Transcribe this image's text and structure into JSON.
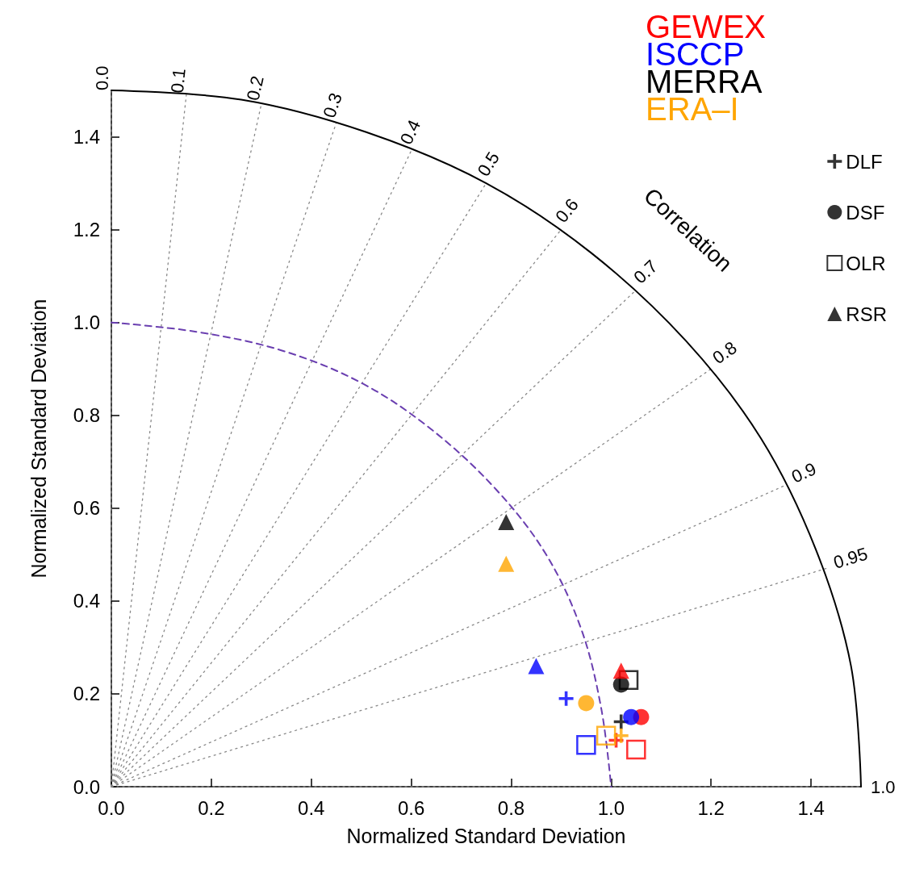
{
  "chart_data": {
    "type": "scatter",
    "xlabel": "Normalized Standard Deviation",
    "ylabel": "Normalized Standard Deviation",
    "annotations": [
      "Correlation"
    ],
    "xlim": [
      0,
      1.5
    ],
    "xticks": [
      {
        "value": 0,
        "label": "0.0"
      },
      0.2,
      0.4,
      0.6,
      0.8,
      {
        "value": 1,
        "label": "1.0"
      },
      1.2,
      1.4
    ],
    "ylim": [
      0,
      1.5
    ],
    "yticks": [
      {
        "value": 0,
        "label": "0.0"
      },
      0.2,
      0.4,
      0.6,
      0.8,
      {
        "value": 1,
        "label": "1.0"
      },
      1.2,
      1.4
    ],
    "grid": false,
    "legend": "top right",
    "series": [
      {
        "name": "0.0",
        "type": "line",
        "color": "#888888",
        "line_style": "dotted",
        "marker": "none",
        "x": [
          0,
          0
        ],
        "values": [
          0,
          1.5
        ]
      },
      {
        "name": "0.1",
        "type": "line",
        "color": "#888888",
        "line_style": "dotted",
        "marker": "none",
        "x": [
          0,
          0.15
        ],
        "values": [
          0,
          1.49
        ]
      },
      {
        "name": "0.2",
        "type": "line",
        "color": "#888888",
        "line_style": "dotted",
        "marker": "none",
        "x": [
          0,
          0.3
        ],
        "values": [
          0,
          1.47
        ]
      },
      {
        "name": "0.3",
        "type": "line",
        "color": "#888888",
        "line_style": "dotted",
        "marker": "none",
        "x": [
          0,
          0.45
        ],
        "values": [
          0,
          1.43
        ]
      },
      {
        "name": "0.4",
        "type": "line",
        "color": "#888888",
        "line_style": "dotted",
        "marker": "none",
        "x": [
          0,
          0.6
        ],
        "values": [
          0,
          1.37
        ]
      },
      {
        "name": "0.5",
        "type": "line",
        "color": "#888888",
        "line_style": "dotted",
        "marker": "none",
        "x": [
          0,
          0.75
        ],
        "values": [
          0,
          1.3
        ]
      },
      {
        "name": "0.6",
        "type": "line",
        "color": "#888888",
        "line_style": "dotted",
        "marker": "none",
        "x": [
          0,
          0.9
        ],
        "values": [
          0,
          1.2
        ]
      },
      {
        "name": "0.7",
        "type": "line",
        "color": "#888888",
        "line_style": "dotted",
        "marker": "none",
        "x": [
          0,
          1.05
        ],
        "values": [
          0,
          1.07
        ]
      },
      {
        "name": "0.8",
        "type": "line",
        "color": "#888888",
        "line_style": "dotted",
        "marker": "none",
        "x": [
          0,
          1.2
        ],
        "values": [
          0,
          0.9
        ]
      },
      {
        "name": "0.9",
        "type": "line",
        "color": "#888888",
        "line_style": "dotted",
        "marker": "none",
        "x": [
          0,
          1.35
        ],
        "values": [
          0,
          0.65
        ]
      },
      {
        "name": "0.95",
        "type": "line",
        "color": "#888888",
        "line_style": "dotted",
        "marker": "none",
        "x": [
          0,
          1.43
        ],
        "values": [
          0,
          0.47
        ]
      },
      {
        "name": "1.0",
        "type": "line",
        "color": "#888888",
        "line_style": "dotted",
        "marker": "none",
        "x": [
          0,
          1.5
        ],
        "values": [
          0,
          0
        ]
      },
      {
        "type": "line",
        "color": "#000000",
        "line_style": "solid",
        "marker": "none",
        "x": [
          0,
          0.26,
          0.51,
          0.75,
          0.96,
          1.15,
          1.3,
          1.41,
          1.48,
          1.5
        ],
        "values": [
          1.5,
          1.48,
          1.41,
          1.3,
          1.15,
          0.96,
          0.75,
          0.51,
          0.26,
          0
        ]
      },
      {
        "type": "line",
        "color": "#6a3fb0",
        "line_style": "dashed",
        "marker": "none",
        "x": [
          0,
          0.17,
          0.34,
          0.5,
          0.64,
          0.77,
          0.87,
          0.94,
          0.98,
          1
        ],
        "values": [
          1,
          0.98,
          0.94,
          0.87,
          0.77,
          0.64,
          0.5,
          0.34,
          0.17,
          0
        ]
      },
      {
        "name": "GEWEX",
        "type": "scatter",
        "color": "#ff0000"
      },
      {
        "name": "ISCCP",
        "type": "scatter",
        "color": "#0000ff"
      },
      {
        "name": "MERRA",
        "type": "scatter",
        "color": "#000000"
      },
      {
        "name": "ERA–I",
        "type": "scatter",
        "color": "#ffa500"
      },
      {
        "name": "DLF",
        "type": "scatter",
        "marker": "cross",
        "color": "#000000",
        "x": [
          1.01,
          0.91,
          1.02,
          1.02
        ],
        "values": [
          0.1,
          0.19,
          0.14,
          0.11
        ],
        "colors": [
          "#ff0000",
          "#0000ff",
          "#000000",
          "#ffa500"
        ]
      },
      {
        "name": "DSF",
        "type": "scatter",
        "marker": "circle",
        "color": "#000000",
        "x": [
          1.06,
          1.04,
          1.02,
          0.95
        ],
        "values": [
          0.15,
          0.15,
          0.22,
          0.18
        ],
        "colors": [
          "#ff0000",
          "#0000ff",
          "#000000",
          "#ffa500"
        ]
      },
      {
        "name": "OLR",
        "type": "scatter",
        "marker": "square",
        "color": "#000000",
        "x": [
          1.05,
          0.95,
          1.035,
          0.99
        ],
        "values": [
          0.08,
          0.09,
          0.23,
          0.11
        ],
        "colors": [
          "#ff0000",
          "#0000ff",
          "#000000",
          "#ffa500"
        ]
      },
      {
        "name": "RSR",
        "type": "scatter",
        "marker": "triangle",
        "color": "#000000",
        "x": [
          1.02,
          0.85,
          0.79,
          0.79
        ],
        "values": [
          0.25,
          0.26,
          0.57,
          0.48
        ],
        "colors": [
          "#ff0000",
          "#0000ff",
          "#000000",
          "#ffa500"
        ]
      }
    ]
  }
}
